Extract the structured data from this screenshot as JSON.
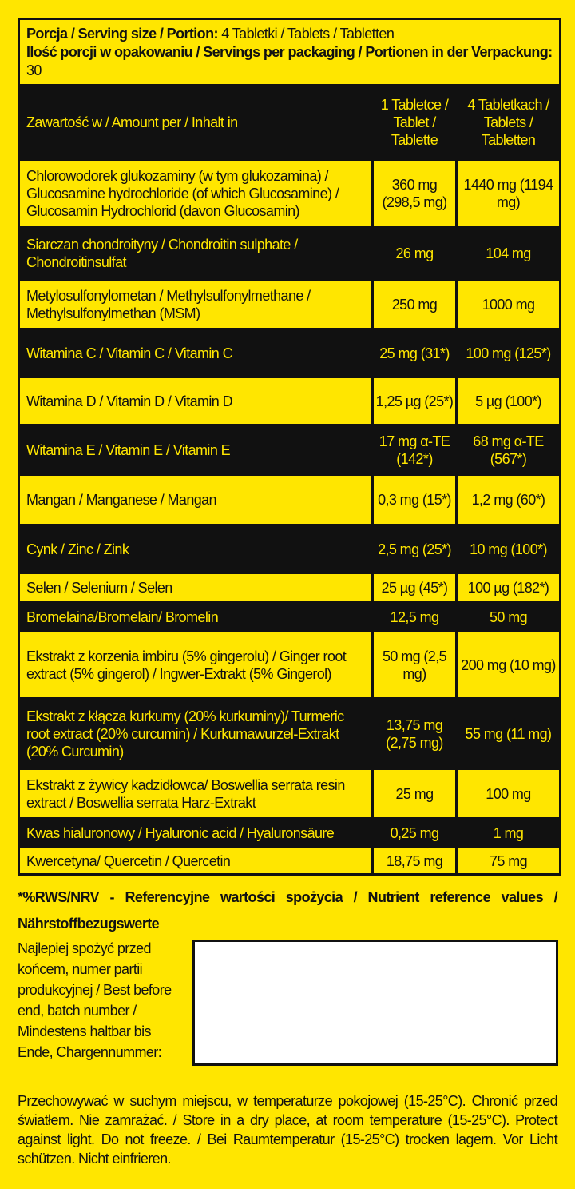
{
  "header": {
    "serving_label": "Porcja / Serving size / Portion:",
    "serving_value": "4 Tabletki / Tablets / Tabletten",
    "servings_label": "Ilość porcji w opakowaniu / Servings per packaging / Portionen in der Verpackung:",
    "servings_value": "30"
  },
  "columns": {
    "name": "Zawartość w / Amount per / Inhalt in",
    "per1": "1 Tabletce / Tablet / Tablette",
    "per4": "4 Tabletkach / Tablets / Tabletten"
  },
  "rows": [
    {
      "name": "Chlorowodorek glukozaminy (w tym glukozamina) / Glucosamine hydrochloride (of which  Glucosamine) / Glucosamin Hydrochlorid (davon Glucosamin)",
      "per1": "360 mg (298,5 mg)",
      "per4": "1440 mg (1194 mg)"
    },
    {
      "name": "Siarczan chondroityny / Chondroitin sulphate / Chondroitinsulfat",
      "per1": "26 mg",
      "per4": "104 mg"
    },
    {
      "name": "Metylosulfonylometan / Methylsulfonylmethane / Methylsulfonylmethan (MSM)",
      "per1": "250 mg",
      "per4": "1000 mg"
    },
    {
      "name": "Witamina C / Vitamin C / Vitamin C",
      "per1": "25 mg (31*)",
      "per4": "100 mg (125*)"
    },
    {
      "name": "Witamina D / Vitamin D / Vitamin D",
      "per1": "1,25 µg (25*)",
      "per4": "5 µg (100*)"
    },
    {
      "name": "Witamina E / Vitamin E / Vitamin E",
      "per1": "17 mg α-TE (142*)",
      "per4": "68 mg α-TE (567*)"
    },
    {
      "name": "Mangan / Manganese / Mangan",
      "per1": "0,3 mg (15*)",
      "per4": "1,2 mg (60*)"
    },
    {
      "name": "Cynk / Zinc / Zink",
      "per1": "2,5 mg (25*)",
      "per4": "10 mg (100*)"
    },
    {
      "name": "Selen / Selenium / Selen",
      "per1": "25 µg (45*)",
      "per4": "100 µg (182*)"
    },
    {
      "name": "Bromelaina/Bromelain/ Bromelin",
      "per1": "12,5 mg",
      "per4": "50 mg"
    },
    {
      "name": "Ekstrakt z korzenia imbiru (5% gingerolu) / Ginger root extract (5% gingerol) / Ingwer-Extrakt (5% Gingerol)",
      "per1": "50 mg (2,5 mg)",
      "per4": "200 mg (10 mg)"
    },
    {
      "name": "Ekstrakt z kłącza kurkumy (20% kurkuminy)/ Turmeric root extract (20% curcumin) / Kurkumawurzel-Extrakt (20% Curcumin)",
      "per1": "13,75 mg (2,75 mg)",
      "per4": "55 mg (11 mg)"
    },
    {
      "name": "Ekstrakt z żywicy kadzidłowca/ Boswellia serrata resin extract / Boswellia serrata Harz-Extrakt",
      "per1": "25 mg",
      "per4": "100 mg"
    },
    {
      "name": "Kwas hialuronowy / Hyaluronic acid / Hyaluronsäure",
      "per1": "0,25 mg",
      "per4": "1 mg"
    },
    {
      "name": "Kwercetyna/ Quercetin / Quercetin",
      "per1": "18,75 mg",
      "per4": "75 mg"
    }
  ],
  "nrv_note": "*%RWS/NRV - Referencyjne wartości spożycia / Nutrient reference values / Nährstoffbezugswerte",
  "best_before": "Najlepiej spożyć przed końcem, numer partii produkcyjnej / Best before end, batch number / Mindestens  haltbar bis Ende, Chargennummer:",
  "storage": "Przechowywać w suchym miejscu, w temperaturze pokojowej (15-25°C). Chronić przed światłem. Nie zamrażać. / Store in a dry place, at room temperature (15-25°C). Protect against light. Do not freeze. / Bei Raumtemperatur (15-25°C) trocken lagern. Vor Licht schützen. Nicht einfrieren.",
  "colors": {
    "background": "#ffe600",
    "ink": "#111111"
  }
}
